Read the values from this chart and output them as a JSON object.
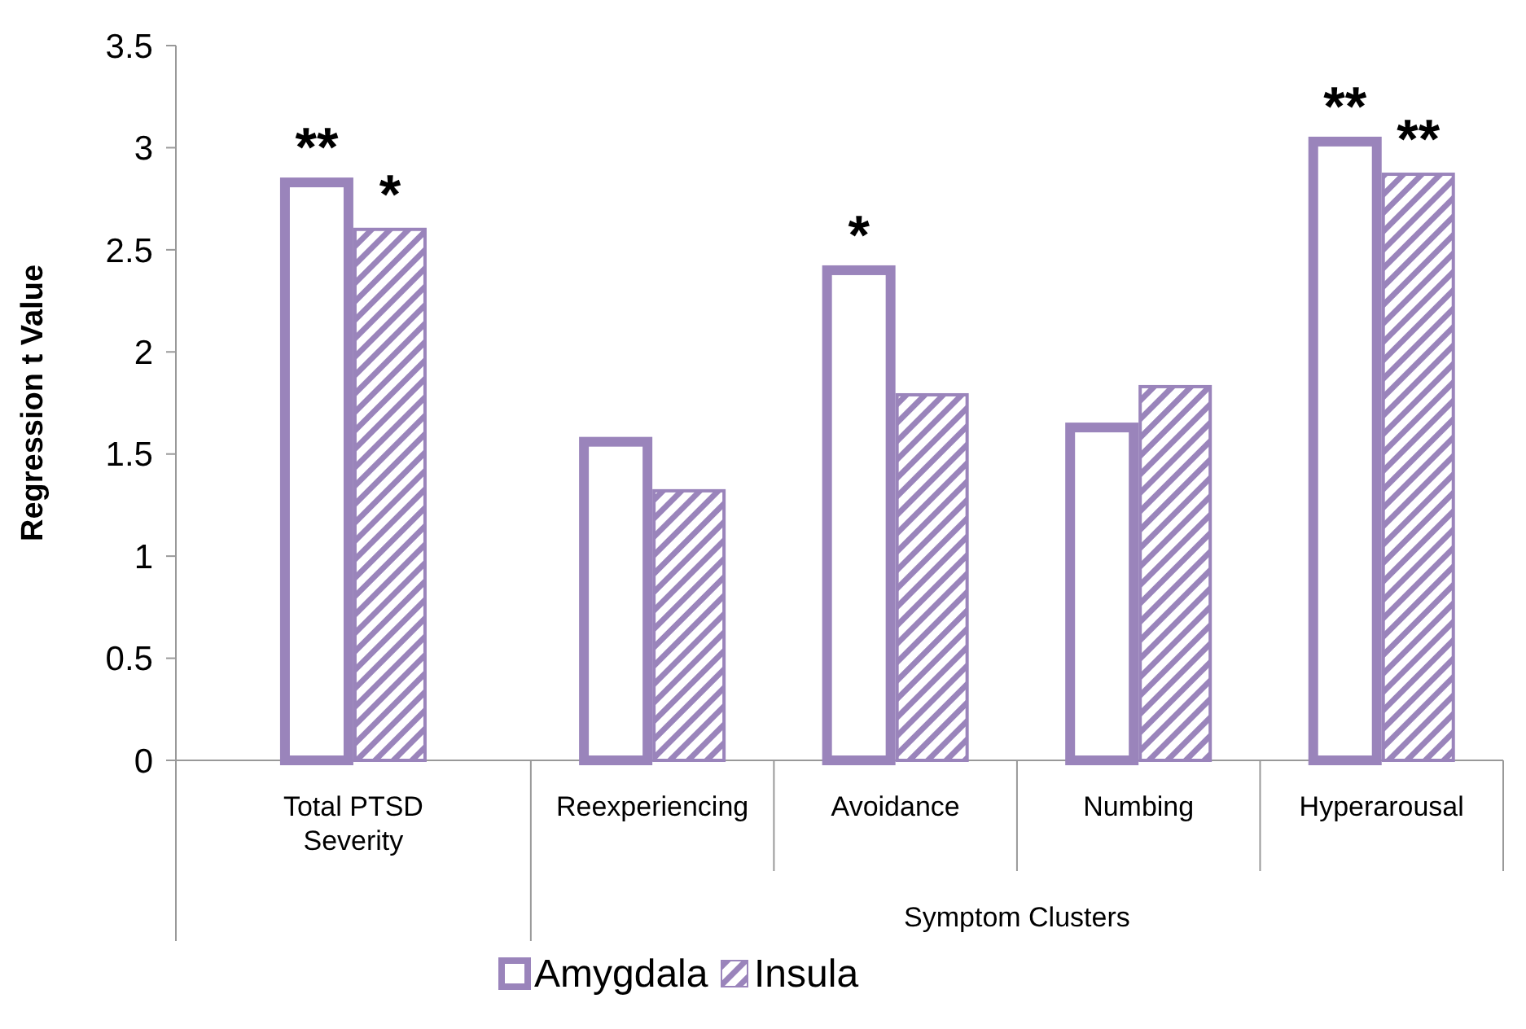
{
  "chart_data": {
    "type": "bar",
    "ylabel": "Regression t Value",
    "categories": [
      "Total PTSD Severity",
      "Reexperiencing",
      "Avoidance",
      "Numbing",
      "Hyperarousal"
    ],
    "series": [
      {
        "name": "Amygdala",
        "color": "#9a84bb",
        "values": [
          2.83,
          1.56,
          2.4,
          1.63,
          3.03
        ],
        "value_labels": [
          "**",
          null,
          "*",
          null,
          "**"
        ]
      },
      {
        "name": "Insula",
        "color": "#9a84bb",
        "values": [
          2.6,
          1.32,
          1.79,
          1.83,
          2.87
        ],
        "value_labels": [
          "*",
          null,
          null,
          null,
          "**"
        ]
      }
    ],
    "ylim": [
      0,
      3.5
    ],
    "yticks": [
      0,
      0.5,
      1,
      1.5,
      2,
      2.5,
      3,
      3.5
    ],
    "grid": false,
    "legend": "bottom",
    "annotations": [
      "Symptom Clusters"
    ]
  }
}
